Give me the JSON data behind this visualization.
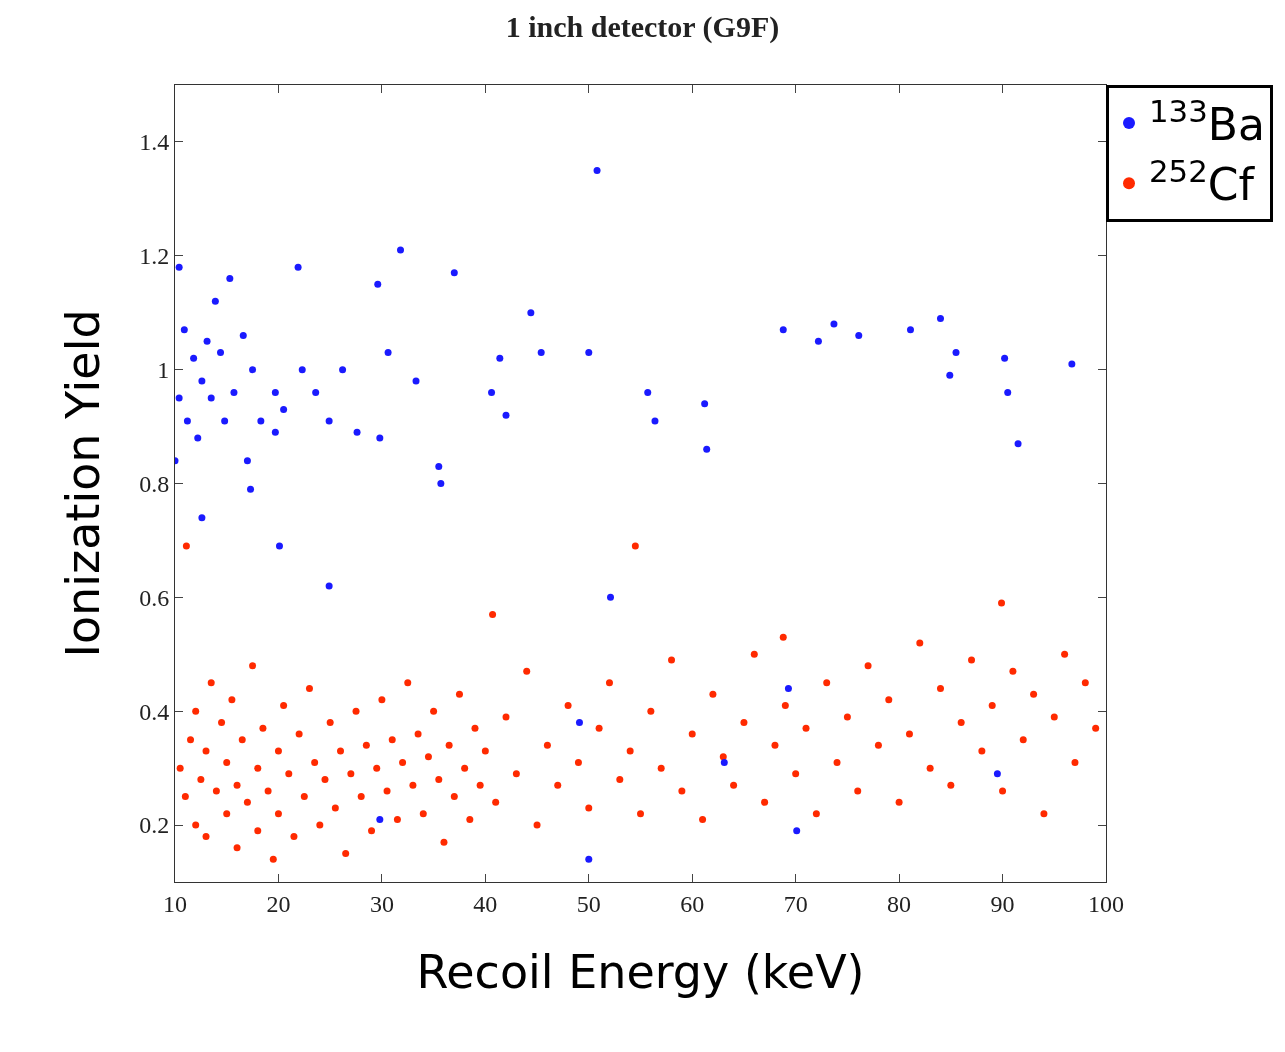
{
  "chart_data": {
    "type": "scatter",
    "title": "1 inch detector (G9F)",
    "xlabel": "Recoil Energy (keV)",
    "ylabel": "Ionization Yield",
    "xlim": [
      10,
      100
    ],
    "xticks": [
      10,
      20,
      30,
      40,
      50,
      60,
      70,
      80,
      90,
      100
    ],
    "ylim": [
      0.1,
      1.5
    ],
    "yticks": [
      0.2,
      0.4,
      0.6,
      0.8,
      1,
      1.2,
      1.4
    ],
    "legend": "top right",
    "series": [
      {
        "name": "$^{133}$Ba",
        "color": "#1a1aff",
        "x": [
          50.8,
          31.8,
          37.0,
          21.9,
          15.3,
          29.6,
          44.4,
          50.0,
          45.4,
          68.8,
          73.7,
          72.2,
          76.1,
          81.1,
          84.0,
          85.5,
          84.9,
          90.2,
          96.7,
          90.5,
          91.5,
          61.2,
          61.4,
          55.7,
          56.4,
          40.6,
          42.0,
          41.4,
          35.5,
          35.7,
          29.8,
          26.2,
          23.6,
          20.5,
          17.0,
          17.3,
          12.6,
          10.4,
          10.9,
          11.8,
          12.6,
          13.5,
          11.2,
          14.4,
          15.7,
          12.2,
          14.8,
          17.5,
          18.3,
          10.4,
          13.1,
          16.6,
          19.7,
          22.3,
          24.9,
          27.6,
          30.6,
          33.3,
          10.0,
          13.9,
          19.7,
          20.1,
          24.9,
          52.1,
          50.0,
          70.1,
          89.5,
          69.3,
          49.1,
          29.8,
          63.1
        ],
        "values": [
          1.35,
          1.21,
          1.17,
          1.18,
          1.16,
          1.15,
          1.1,
          1.03,
          1.03,
          1.07,
          1.08,
          1.05,
          1.06,
          1.07,
          1.09,
          1.03,
          0.99,
          1.02,
          1.01,
          0.96,
          0.87,
          0.94,
          0.86,
          0.96,
          0.91,
          0.96,
          0.92,
          1.02,
          0.83,
          0.8,
          0.88,
          1.0,
          0.96,
          0.93,
          0.84,
          0.79,
          0.74,
          1.18,
          1.07,
          1.02,
          0.98,
          0.95,
          0.91,
          1.03,
          0.96,
          0.88,
          0.91,
          1.0,
          0.91,
          0.95,
          1.05,
          1.06,
          0.96,
          1.0,
          0.91,
          0.89,
          1.03,
          0.98,
          0.84,
          1.12,
          0.89,
          0.69,
          0.62,
          0.6,
          0.14,
          0.19,
          0.29,
          0.44,
          0.38,
          0.21,
          0.31
        ]
      },
      {
        "name": "$^{252}$Cf",
        "color": "#ff2a00",
        "x": [
          10.5,
          11,
          11.5,
          12,
          12,
          12.5,
          13,
          13,
          13.5,
          14,
          14.5,
          15,
          15,
          15.5,
          16,
          16,
          16.5,
          17,
          17.5,
          18,
          18,
          18.5,
          19,
          19.5,
          20,
          20,
          20.5,
          21,
          21.5,
          22,
          22.5,
          23,
          23.5,
          24,
          24.5,
          25,
          25.5,
          26,
          26.5,
          27,
          27.5,
          28,
          28.5,
          29,
          29.5,
          30,
          30.5,
          31,
          31.5,
          32,
          32.5,
          33,
          33.5,
          34,
          34.5,
          35,
          35.5,
          36,
          36.5,
          37,
          37.5,
          38,
          38.5,
          39,
          39.5,
          40,
          40.7,
          41,
          42,
          43,
          44,
          45,
          46,
          47,
          48,
          49,
          50,
          51,
          52,
          53,
          54,
          54.5,
          55,
          56,
          57,
          58,
          59,
          60,
          61,
          62,
          63,
          64,
          65,
          66,
          67,
          68,
          68.8,
          69,
          70,
          71,
          72,
          73,
          74,
          75,
          76,
          77,
          78,
          79,
          80,
          81,
          82,
          83,
          84,
          85,
          86,
          87,
          88,
          89,
          89.9,
          90,
          91,
          92,
          93,
          94,
          95,
          96,
          97,
          98,
          99,
          11.1
        ],
        "values": [
          0.3,
          0.25,
          0.35,
          0.2,
          0.4,
          0.28,
          0.33,
          0.18,
          0.45,
          0.26,
          0.38,
          0.22,
          0.31,
          0.42,
          0.16,
          0.27,
          0.35,
          0.24,
          0.48,
          0.3,
          0.19,
          0.37,
          0.26,
          0.14,
          0.33,
          0.22,
          0.41,
          0.29,
          0.18,
          0.36,
          0.25,
          0.44,
          0.31,
          0.2,
          0.28,
          0.38,
          0.23,
          0.33,
          0.15,
          0.29,
          0.4,
          0.25,
          0.34,
          0.19,
          0.3,
          0.42,
          0.26,
          0.35,
          0.21,
          0.31,
          0.45,
          0.27,
          0.36,
          0.22,
          0.32,
          0.4,
          0.28,
          0.17,
          0.34,
          0.25,
          0.43,
          0.3,
          0.21,
          0.37,
          0.27,
          0.33,
          0.57,
          0.24,
          0.39,
          0.29,
          0.47,
          0.2,
          0.34,
          0.27,
          0.41,
          0.31,
          0.23,
          0.37,
          0.45,
          0.28,
          0.33,
          0.69,
          0.22,
          0.4,
          0.3,
          0.49,
          0.26,
          0.36,
          0.21,
          0.43,
          0.32,
          0.27,
          0.38,
          0.5,
          0.24,
          0.34,
          0.53,
          0.41,
          0.29,
          0.37,
          0.22,
          0.45,
          0.31,
          0.39,
          0.26,
          0.48,
          0.34,
          0.42,
          0.24,
          0.36,
          0.52,
          0.3,
          0.44,
          0.27,
          0.38,
          0.49,
          0.33,
          0.41,
          0.59,
          0.26,
          0.47,
          0.35,
          0.43,
          0.22,
          0.39,
          0.5,
          0.31,
          0.45,
          0.37,
          0.69
        ]
      }
    ]
  }
}
